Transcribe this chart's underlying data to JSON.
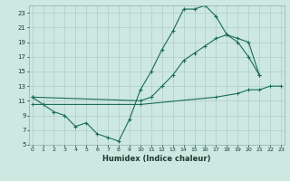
{
  "xlabel": "Humidex (Indice chaleur)",
  "ylabel": "",
  "bg_color": "#cce8e0",
  "grid_color": "#b0ccc8",
  "line_color": "#1a6b5a",
  "xlim": [
    0,
    23
  ],
  "ylim": [
    5,
    24
  ],
  "yticks": [
    5,
    7,
    9,
    11,
    13,
    15,
    17,
    19,
    21,
    23
  ],
  "xticks": [
    0,
    1,
    2,
    3,
    4,
    5,
    6,
    7,
    8,
    9,
    10,
    11,
    12,
    13,
    14,
    15,
    16,
    17,
    18,
    19,
    20,
    21,
    22,
    23
  ],
  "line1_x": [
    0,
    1,
    2,
    3,
    4,
    5,
    6,
    7,
    8,
    9,
    10,
    11,
    12,
    13,
    14,
    15,
    16,
    17,
    18,
    19,
    20,
    21
  ],
  "line1_y": [
    11.5,
    10.5,
    9.5,
    9.0,
    7.5,
    8.0,
    6.5,
    6.0,
    5.5,
    8.5,
    12.5,
    15.0,
    18.0,
    20.5,
    23.5,
    23.5,
    24.0,
    22.5,
    20.0,
    19.0,
    17.0,
    14.5
  ],
  "line2_x": [
    0,
    10,
    11,
    12,
    13,
    14,
    15,
    16,
    17,
    18,
    19,
    20,
    21
  ],
  "line2_y": [
    11.5,
    11.0,
    11.5,
    13.0,
    14.5,
    16.5,
    17.5,
    18.5,
    19.5,
    20.0,
    19.5,
    19.0,
    14.5
  ],
  "line3_x": [
    0,
    10,
    17,
    19,
    20,
    21,
    22,
    23
  ],
  "line3_y": [
    10.5,
    10.5,
    11.5,
    12.0,
    12.5,
    12.5,
    13.0,
    13.0
  ]
}
